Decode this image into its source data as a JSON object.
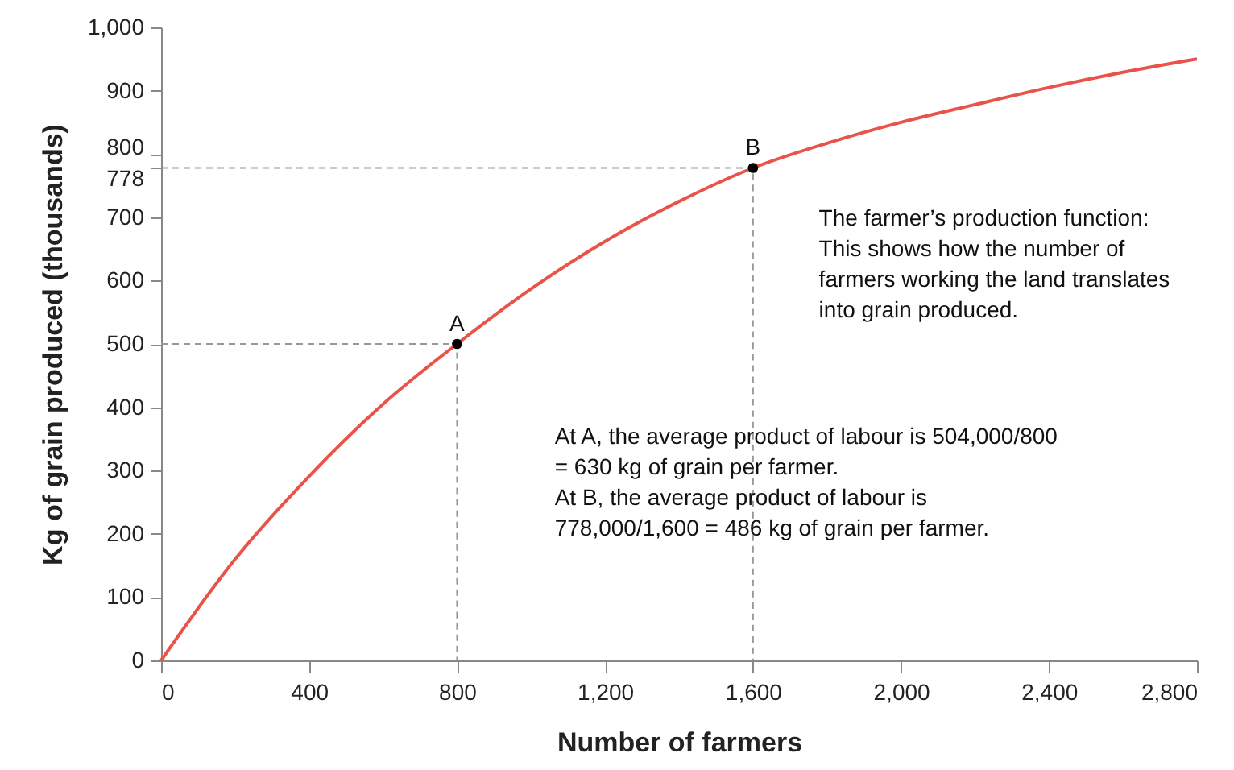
{
  "chart_data": {
    "type": "line",
    "xlabel": "Number of farmers",
    "ylabel": "Kg of grain produced (thousands)",
    "x": [
      0,
      200,
      400,
      600,
      800,
      1000,
      1200,
      1400,
      1600,
      1800,
      2000,
      2200,
      2400,
      2600,
      2800
    ],
    "series": [
      {
        "color": "#e8534a",
        "values": [
          0,
          160,
          291,
          405,
          500,
          587,
          662,
          725,
          778,
          817,
          850,
          878,
          905,
          929,
          950
        ]
      },
      {
        "type": "line",
        "color": "#999999",
        "line_style": "dashed",
        "x": [
          0,
          800,
          800
        ],
        "values": [
          500,
          500,
          0
        ]
      },
      {
        "type": "line",
        "color": "#999999",
        "line_style": "dashed",
        "x": [
          0,
          1600,
          1600
        ],
        "values": [
          778,
          778,
          0
        ]
      },
      {
        "type": "scatter",
        "color": "#000000",
        "marker": "circle",
        "x": [
          800,
          1600
        ],
        "values": [
          500,
          778
        ]
      }
    ],
    "xlim": [
      0,
      2800
    ],
    "xticks": [
      {
        "value": 0,
        "label": "0"
      },
      {
        "value": 400,
        "label": "400"
      },
      {
        "value": 800,
        "label": "800"
      },
      {
        "value": 1200,
        "label": "1,200"
      },
      {
        "value": 1600,
        "label": "1,600"
      },
      {
        "value": 2000,
        "label": "2,000"
      },
      {
        "value": 2400,
        "label": "2,400"
      },
      {
        "value": 2800,
        "label": "2,800"
      }
    ],
    "ylim": [
      0,
      1000
    ],
    "yticks": [
      0,
      100,
      200,
      300,
      400,
      500,
      600,
      700,
      778,
      800,
      900,
      {
        "value": 1000,
        "label": "1,000"
      }
    ],
    "grid": false,
    "annotations": [
      {
        "text": "A",
        "x": 800,
        "y": 500
      },
      {
        "text": "B",
        "x": 1600,
        "y": 778
      },
      "The farmer’s production function:\nThis shows how the number of\nfarmers working the land translates\ninto grain produced.",
      "At A, the average product of labour is 504,000/800\n= 630 kg of grain per farmer.\nAt B, the average product of labour is\n778,000/1,600 = 486 kg of grain per farmer."
    ]
  }
}
